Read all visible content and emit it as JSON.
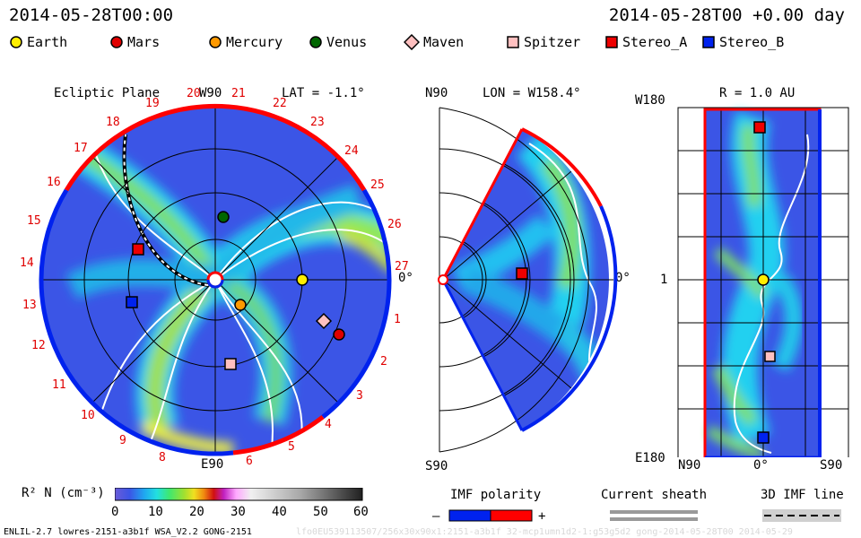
{
  "header": {
    "left_timestamp": "2014-05-28T00:00",
    "right_timestamp": "2014-05-28T00 +0.00 day"
  },
  "legend": [
    {
      "label": "Earth",
      "shape": "circle",
      "color": "#ffee00"
    },
    {
      "label": "Mars",
      "shape": "circle",
      "color": "#e00000"
    },
    {
      "label": "Mercury",
      "shape": "circle",
      "color": "#ff9900"
    },
    {
      "label": "Venus",
      "shape": "circle",
      "color": "#006600"
    },
    {
      "label": "Maven",
      "shape": "diamond",
      "color": "#ffc0c0"
    },
    {
      "label": "Spitzer",
      "shape": "square",
      "color": "#ffc0c0"
    },
    {
      "label": "Stereo_A",
      "shape": "square",
      "color": "#ee0000"
    },
    {
      "label": "Stereo_B",
      "shape": "square",
      "color": "#0022ee"
    }
  ],
  "ecliptic_panel": {
    "title": "Ecliptic Plane",
    "lat": "LAT = -1.1°",
    "top_label": "W90",
    "bottom_label": "E90",
    "right_label": "0°",
    "carrington_labels": [
      "1",
      "2",
      "3",
      "4",
      "5",
      "6",
      "8",
      "9",
      "10",
      "11",
      "12",
      "13",
      "14",
      "15",
      "16",
      "17",
      "18",
      "19",
      "20",
      "21",
      "22",
      "23",
      "24",
      "25",
      "26",
      "27"
    ]
  },
  "meridional_panel": {
    "lon": "LON = W158.4°",
    "top_label": "N90",
    "bottom_label": "S90",
    "right_label": "0°"
  },
  "radial_panel": {
    "title": "R = 1.0 AU",
    "top_left": "W180",
    "mid_left": "1",
    "bottom_left": "E180",
    "x_left": "N90",
    "x_mid": "0°",
    "x_right": "S90"
  },
  "colorbar": {
    "label": "R² N (cm⁻³)",
    "ticks": [
      "0",
      "10",
      "20",
      "30",
      "40",
      "50",
      "60"
    ]
  },
  "imf": {
    "polarity_title": "IMF polarity",
    "minus": "–",
    "plus": "+",
    "sheath_title": "Current sheath",
    "line_title": "3D IMF line"
  },
  "footer": {
    "model_text": "ENLIL-2.7 lowres-2151-a3b1f WSA_V2.2 GONG-2151",
    "watermark_text": "lfo0EU539113507/256x30x90x1:2151-a3b1f 32-mcp1umn1d2-1:g53g5d2 gong-2014-05-28T00 2014-05-29"
  }
}
